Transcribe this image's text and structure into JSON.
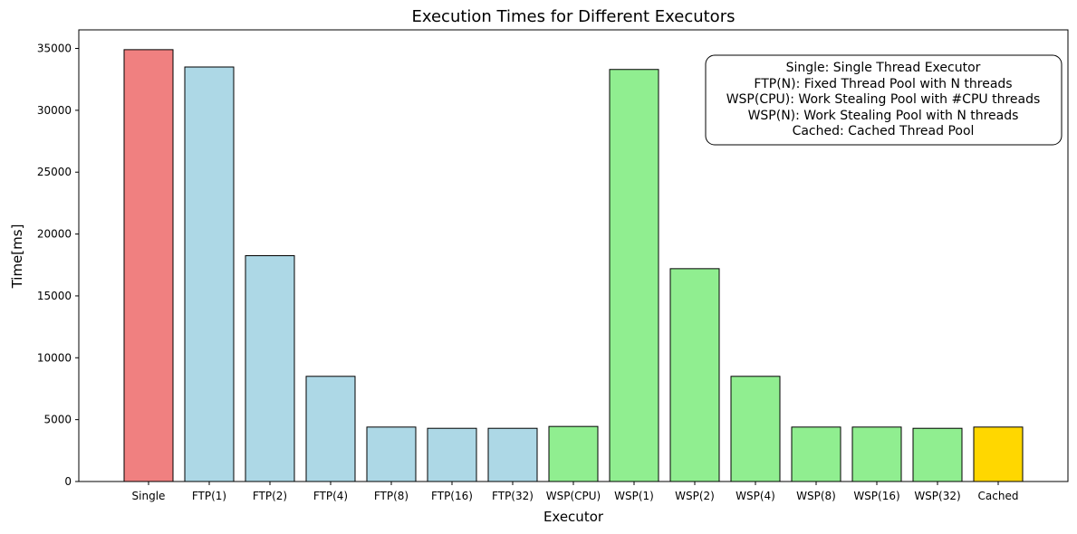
{
  "chart_data": {
    "type": "bar",
    "title": "Execution Times for Different Executors",
    "xlabel": "Executor",
    "ylabel": "Time[ms]",
    "ylim": [
      0,
      36500
    ],
    "yticks": [
      0,
      5000,
      10000,
      15000,
      20000,
      25000,
      30000,
      35000
    ],
    "grid": false,
    "categories": [
      "Single",
      "FTP(1)",
      "FTP(2)",
      "FTP(4)",
      "FTP(8)",
      "FTP(16)",
      "FTP(32)",
      "WSP(CPU)",
      "WSP(1)",
      "WSP(2)",
      "WSP(4)",
      "WSP(8)",
      "WSP(16)",
      "WSP(32)",
      "Cached"
    ],
    "values": [
      34900,
      33500,
      18250,
      8500,
      4400,
      4300,
      4300,
      4450,
      33300,
      17200,
      8500,
      4400,
      4400,
      4300,
      4400
    ],
    "colors": [
      "#f08080",
      "#add8e6",
      "#add8e6",
      "#add8e6",
      "#add8e6",
      "#add8e6",
      "#add8e6",
      "#90ee90",
      "#90ee90",
      "#90ee90",
      "#90ee90",
      "#90ee90",
      "#90ee90",
      "#90ee90",
      "#ffd700"
    ],
    "legend_placement": "top-right",
    "annotation": [
      "Single: Single Thread Executor",
      "FTP(N): Fixed Thread Pool with N threads",
      "WSP(CPU): Work Stealing Pool with #CPU threads",
      "WSP(N): Work Stealing Pool with N threads",
      "Cached: Cached Thread Pool"
    ]
  }
}
